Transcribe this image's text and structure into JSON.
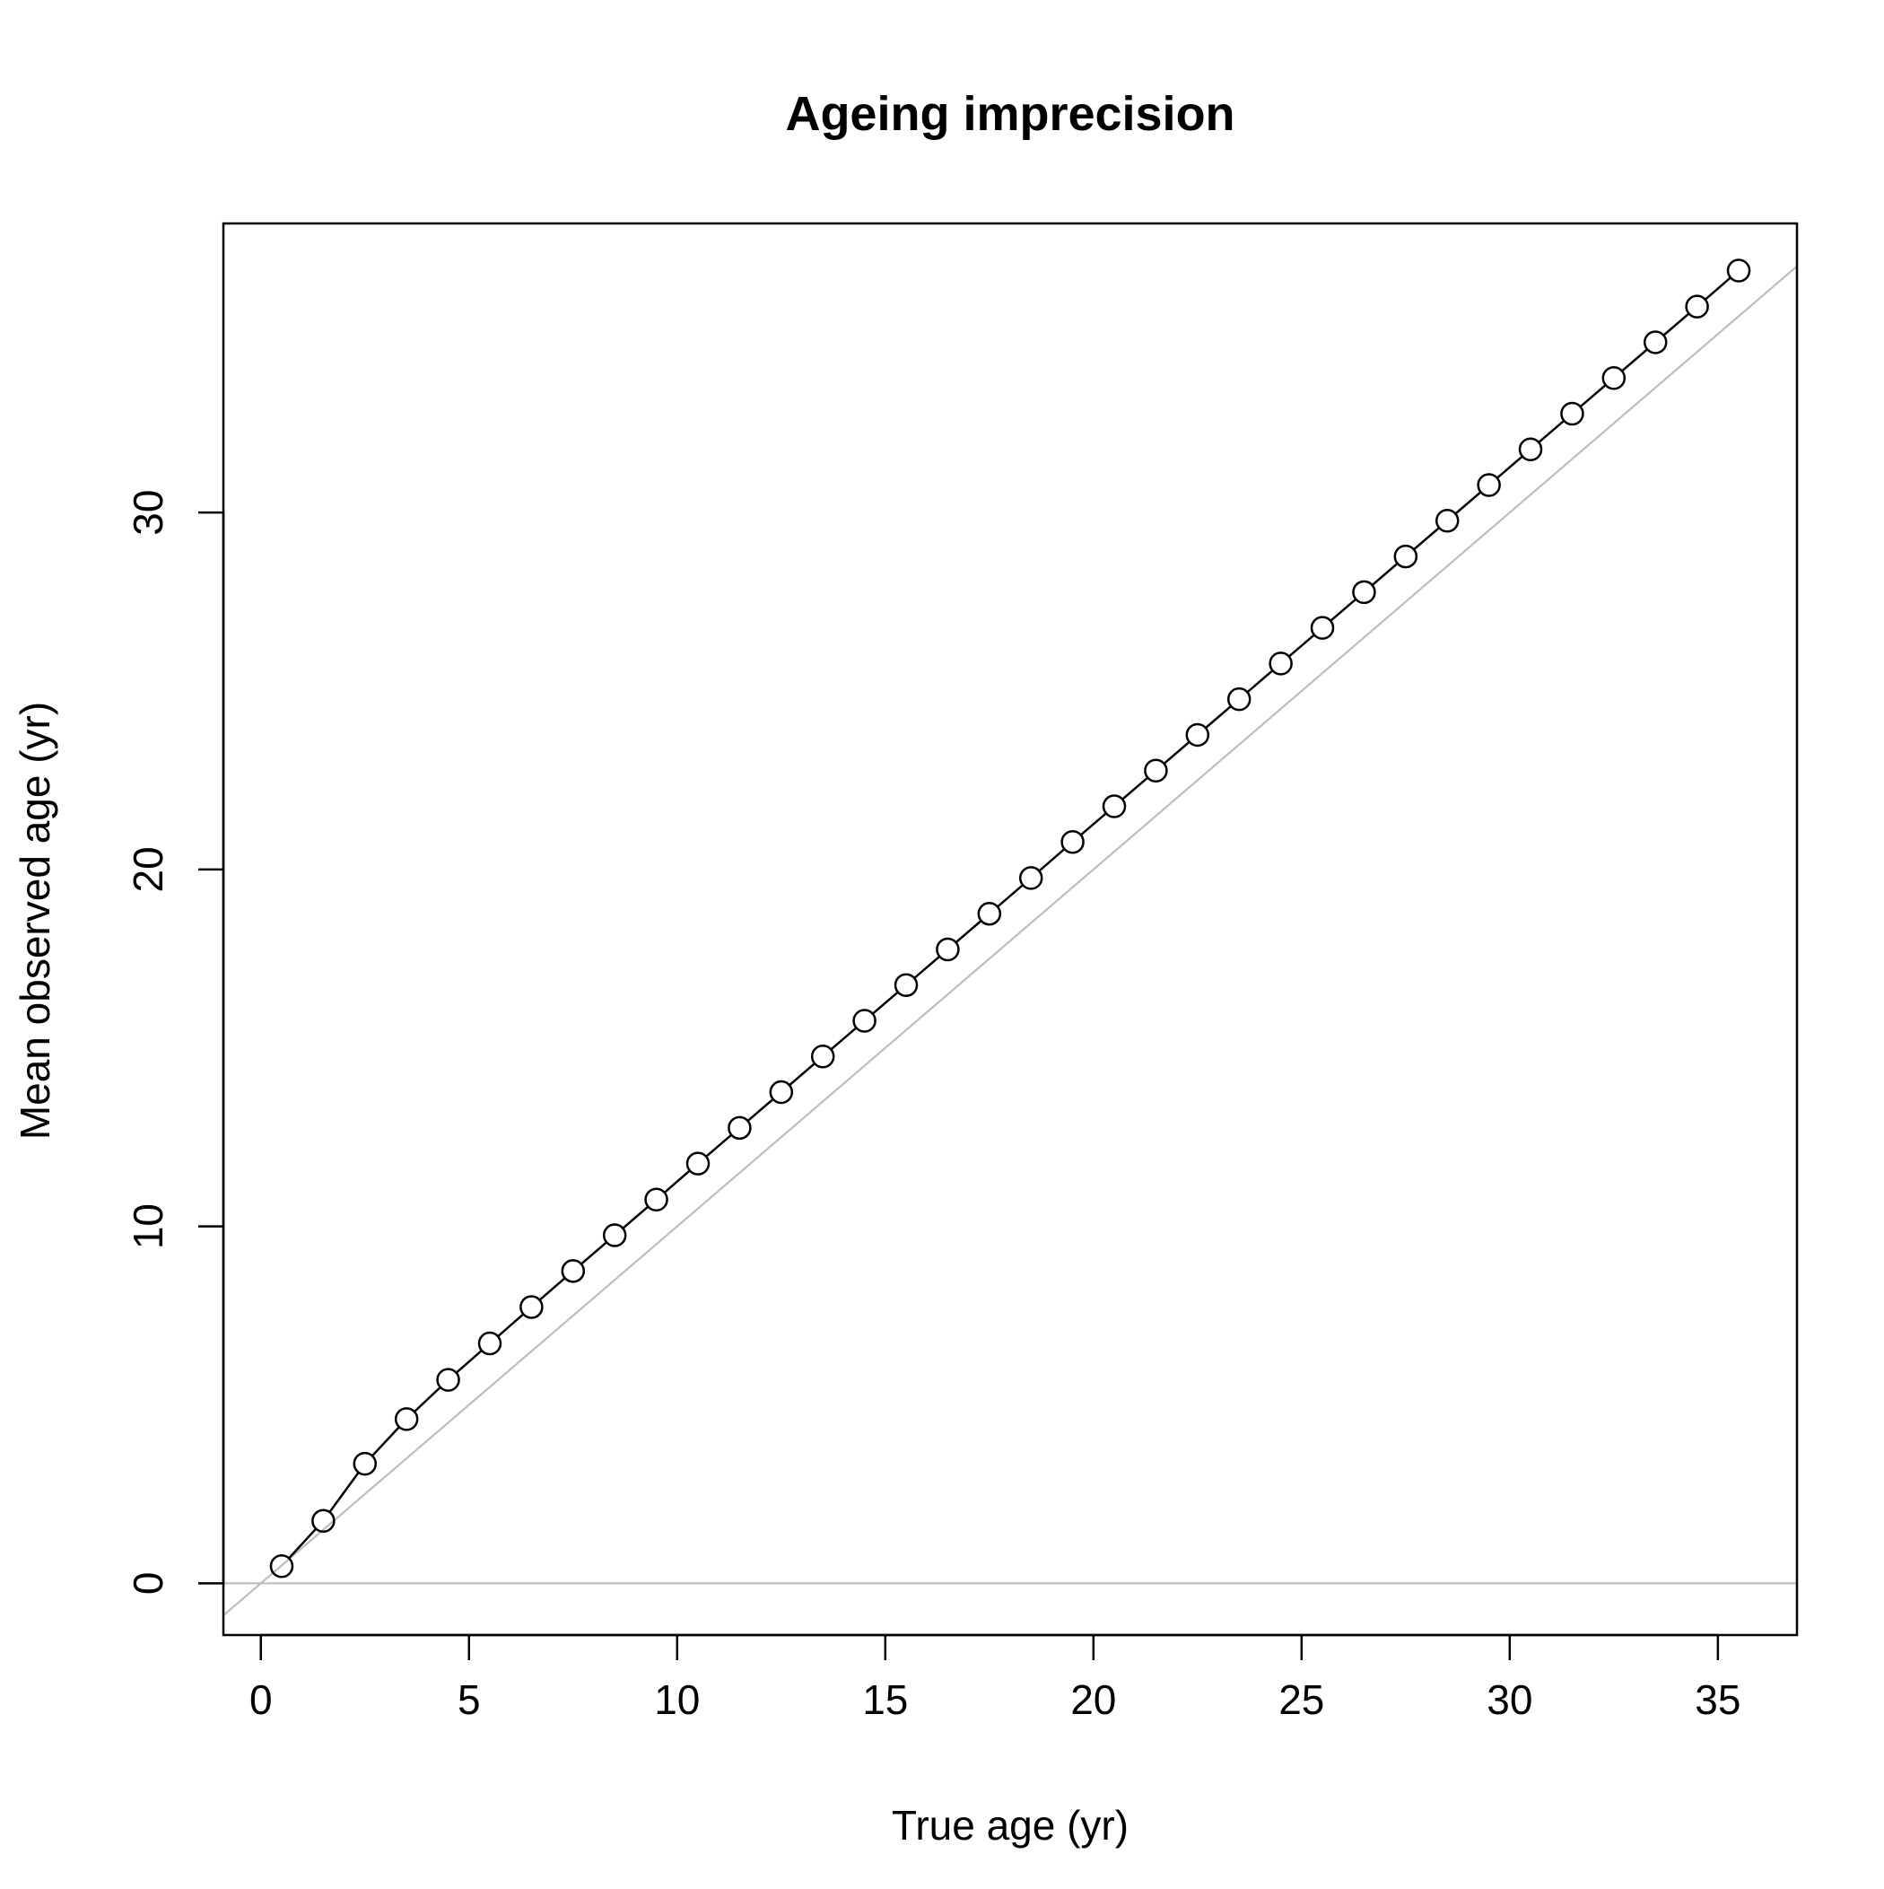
{
  "chart_data": {
    "type": "line",
    "title": "Ageing imprecision",
    "xlabel": "True age (yr)",
    "ylabel": "Mean observed age (yr)",
    "xlim": [
      -0.9,
      36.9
    ],
    "ylim": [
      -1.45,
      38.1
    ],
    "x_ticks": [
      0,
      5,
      10,
      15,
      20,
      25,
      30,
      35
    ],
    "y_ticks": [
      0,
      10,
      20,
      30
    ],
    "grid": false,
    "marker": "open-circle",
    "colors": {
      "series": "#000000",
      "reference": "#bebebe",
      "frame": "#000000"
    },
    "reference_lines": [
      {
        "kind": "identity",
        "slope": 1,
        "intercept": 0
      },
      {
        "kind": "horizontal",
        "y": 0
      }
    ],
    "series": [
      {
        "x": [
          0.5,
          1.5,
          2.5,
          3.5,
          4.5,
          5.5,
          6.5,
          7.5,
          8.5,
          9.5,
          10.5,
          11.5,
          12.5,
          13.5,
          14.5,
          15.5,
          16.5,
          17.5,
          18.5,
          19.5,
          20.5,
          21.5,
          22.5,
          23.5,
          24.5,
          25.5,
          26.5,
          27.5,
          28.5,
          29.5,
          30.5,
          31.5,
          32.5,
          33.5,
          34.5,
          35.5
        ],
        "y": [
          0.48,
          1.75,
          3.35,
          4.6,
          5.7,
          6.72,
          7.74,
          8.75,
          9.75,
          10.75,
          11.76,
          12.76,
          13.76,
          14.76,
          15.76,
          16.76,
          17.76,
          18.76,
          19.76,
          20.77,
          21.77,
          22.77,
          23.77,
          24.77,
          25.77,
          26.77,
          27.77,
          28.77,
          29.77,
          30.77,
          31.77,
          32.77,
          33.77,
          34.77,
          35.77,
          36.78
        ]
      }
    ]
  }
}
